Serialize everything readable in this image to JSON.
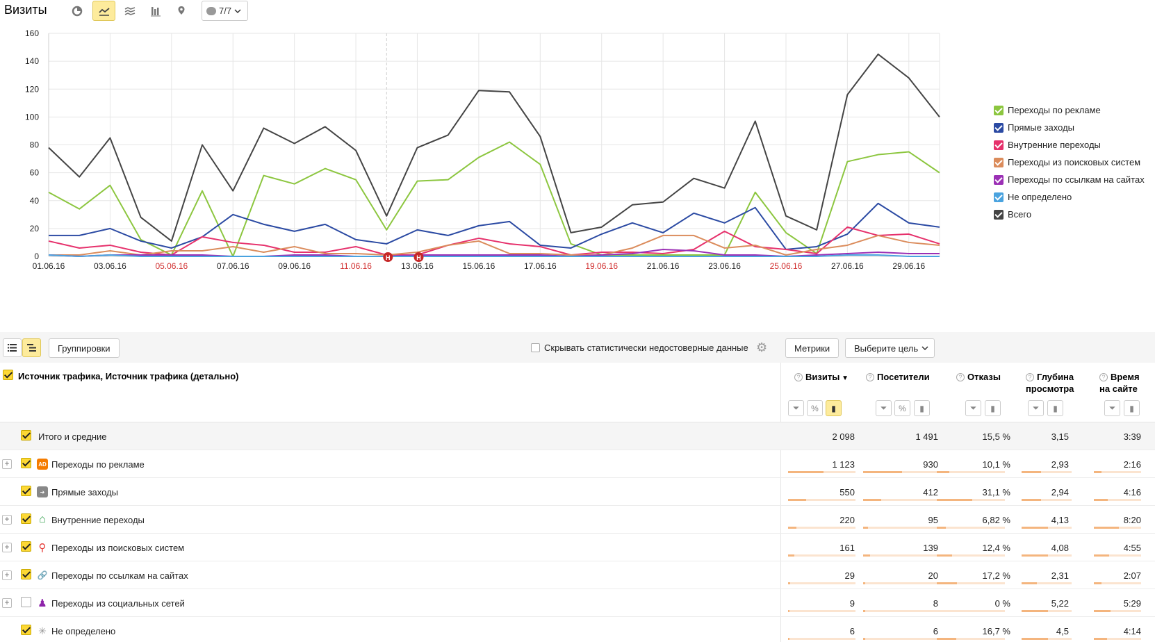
{
  "title": "Визиты",
  "toolbar": {
    "icons": [
      "pie-chart-icon",
      "line-chart-icon",
      "area-chart-icon",
      "bar-chart-icon",
      "map-pin-icon"
    ],
    "active": "line-chart-icon",
    "notes_label": "7/7"
  },
  "chart_data": {
    "type": "line",
    "ylim": [
      0,
      160
    ],
    "yticks": [
      "0",
      "20",
      "40",
      "60",
      "80",
      "100",
      "120",
      "140",
      "160"
    ],
    "x": [
      "01.06.16",
      "02.06.16",
      "03.06.16",
      "04.06.16",
      "05.06.16",
      "06.06.16",
      "07.06.16",
      "08.06.16",
      "09.06.16",
      "10.06.16",
      "11.06.16",
      "12.06.16",
      "13.06.16",
      "14.06.16",
      "15.06.16",
      "16.06.16",
      "17.06.16",
      "18.06.16",
      "19.06.16",
      "20.06.16",
      "21.06.16",
      "22.06.16",
      "23.06.16",
      "24.06.16",
      "25.06.16",
      "26.06.16",
      "27.06.16",
      "28.06.16",
      "29.06.16",
      "30.06.16"
    ],
    "xticks": [
      {
        "label": "01.06.16",
        "weekend": false
      },
      {
        "label": "03.06.16",
        "weekend": false
      },
      {
        "label": "05.06.16",
        "weekend": true
      },
      {
        "label": "07.06.16",
        "weekend": false
      },
      {
        "label": "09.06.16",
        "weekend": false
      },
      {
        "label": "11.06.16",
        "weekend": true
      },
      {
        "label": "13.06.16",
        "weekend": false
      },
      {
        "label": "15.06.16",
        "weekend": false
      },
      {
        "label": "17.06.16",
        "weekend": false
      },
      {
        "label": "19.06.16",
        "weekend": true
      },
      {
        "label": "21.06.16",
        "weekend": false
      },
      {
        "label": "23.06.16",
        "weekend": false
      },
      {
        "label": "25.06.16",
        "weekend": true
      },
      {
        "label": "27.06.16",
        "weekend": false
      },
      {
        "label": "29.06.16",
        "weekend": false
      }
    ],
    "note_markers": [
      {
        "x": "12.06.16",
        "label": "Н"
      },
      {
        "x": "13.06.16",
        "label": "Н"
      }
    ],
    "grid": true,
    "legend_position": "right",
    "series": [
      {
        "name": "Переходы по рекламе",
        "color": "#8cc63f",
        "values": [
          46,
          34,
          51,
          12,
          1,
          47,
          0,
          58,
          52,
          63,
          55,
          19,
          54,
          55,
          71,
          82,
          66,
          9,
          1,
          1,
          1,
          1,
          1,
          46,
          17,
          2,
          68,
          73,
          75,
          60
        ]
      },
      {
        "name": "Прямые заходы",
        "color": "#2b4aa3",
        "values": [
          15,
          15,
          20,
          11,
          6,
          14,
          30,
          23,
          18,
          23,
          12,
          9,
          19,
          15,
          22,
          25,
          8,
          6,
          16,
          24,
          17,
          31,
          24,
          35,
          5,
          7,
          16,
          38,
          24,
          21
        ]
      },
      {
        "name": "Внутренние переходы",
        "color": "#e6316c",
        "values": [
          11,
          6,
          8,
          3,
          1,
          14,
          10,
          8,
          3,
          3,
          7,
          1,
          1,
          8,
          13,
          9,
          7,
          1,
          3,
          3,
          2,
          5,
          18,
          7,
          5,
          2,
          21,
          15,
          16,
          9
        ]
      },
      {
        "name": "Переходы из поисковых систем",
        "color": "#db8c5c",
        "values": [
          1,
          1,
          4,
          1,
          4,
          4,
          7,
          3,
          7,
          2,
          2,
          1,
          3,
          8,
          11,
          2,
          2,
          1,
          1,
          6,
          15,
          15,
          6,
          8,
          1,
          5,
          8,
          15,
          10,
          8
        ]
      },
      {
        "name": "Переходы по ссылкам на сайтах",
        "color": "#9b30b5",
        "values": [
          1,
          0,
          1,
          1,
          1,
          1,
          0,
          0,
          1,
          1,
          0,
          0,
          1,
          1,
          1,
          1,
          1,
          0,
          1,
          2,
          5,
          4,
          1,
          1,
          0,
          1,
          2,
          3,
          2,
          2
        ]
      },
      {
        "name": "Не определено",
        "color": "#4aa3df",
        "values": [
          1,
          0,
          1,
          0,
          0,
          0,
          0,
          0,
          0,
          0,
          0,
          0,
          0,
          0,
          0,
          0,
          0,
          0,
          0,
          0,
          0,
          0,
          0,
          0,
          0,
          0,
          1,
          1,
          0,
          0
        ]
      },
      {
        "name": "Всего",
        "color": "#444444",
        "values": [
          78,
          57,
          85,
          28,
          11,
          80,
          47,
          92,
          81,
          93,
          76,
          29,
          78,
          87,
          119,
          118,
          86,
          17,
          21,
          37,
          39,
          56,
          49,
          97,
          29,
          19,
          116,
          145,
          128,
          100
        ]
      }
    ]
  },
  "table_toolbar": {
    "groupings_label": "Группировки",
    "hide_label": "Скрывать статистически недостоверные данные",
    "metrics_label": "Метрики",
    "goal_label": "Выберите цель"
  },
  "table": {
    "dimension_title": "Источник трафика, Источник трафика (детально)",
    "columns": [
      {
        "line1": "Визиты",
        "line2": "",
        "sorted": "▼"
      },
      {
        "line1": "Посетители",
        "line2": ""
      },
      {
        "line1": "Отказы",
        "line2": ""
      },
      {
        "line1": "Глубина",
        "line2": "просмотра"
      },
      {
        "line1": "Время",
        "line2": "на сайте"
      }
    ],
    "total": {
      "label": "Итого и средние",
      "values": [
        "2 098",
        "1 491",
        "15,5 %",
        "3,15",
        "3:39"
      ]
    },
    "rows": [
      {
        "label": "Переходы по рекламе",
        "icon": "ad-icon",
        "icon_text": "AD",
        "checked": true,
        "expandable": true,
        "values": [
          "1 123",
          "930",
          "10,1 %",
          "2,93",
          "2:16"
        ],
        "fill": [
          1.0,
          1.0,
          0.33,
          0.71,
          0.27
        ]
      },
      {
        "label": "Прямые заходы",
        "icon": "arrow-right-icon",
        "icon_text": "➔",
        "checked": true,
        "expandable": false,
        "values": [
          "550",
          "412",
          "31,1 %",
          "2,94",
          "4:16"
        ],
        "fill": [
          0.49,
          0.44,
          1.0,
          0.71,
          0.52
        ]
      },
      {
        "label": "Внутренние переходы",
        "icon": "home-icon",
        "icon_text": "⌂",
        "checked": true,
        "expandable": true,
        "values": [
          "220",
          "95",
          "6,82 %",
          "4,13",
          "8:20"
        ],
        "fill": [
          0.2,
          0.1,
          0.22,
          1.0,
          1.0
        ]
      },
      {
        "label": "Переходы из поисковых систем",
        "icon": "search-icon",
        "icon_text": "⚲",
        "checked": true,
        "expandable": true,
        "values": [
          "161",
          "139",
          "12,4 %",
          "4,08",
          "4:55"
        ],
        "fill": [
          0.14,
          0.15,
          0.4,
          0.99,
          0.59
        ]
      },
      {
        "label": "Переходы по ссылкам на сайтах",
        "icon": "link-icon",
        "icon_text": "🔗",
        "checked": true,
        "expandable": true,
        "values": [
          "29",
          "20",
          "17,2 %",
          "2,31",
          "2:07"
        ],
        "fill": [
          0.03,
          0.02,
          0.55,
          0.56,
          0.25
        ]
      },
      {
        "label": "Переходы из социальных сетей",
        "icon": "social-icon",
        "icon_text": "♟",
        "checked": false,
        "expandable": true,
        "values": [
          "9",
          "8",
          "0 %",
          "5,22",
          "5:29"
        ],
        "fill": [
          0.01,
          0.01,
          0.0,
          1.0,
          0.66
        ]
      },
      {
        "label": "Не определено",
        "icon": "undefined-icon",
        "icon_text": "✳",
        "checked": true,
        "expandable": false,
        "values": [
          "6",
          "6",
          "16,7 %",
          "4,5",
          "4:14"
        ],
        "fill": [
          0.01,
          0.01,
          0.54,
          1.0,
          0.51
        ]
      }
    ]
  },
  "colors": {
    "accent": "#fdeb9c",
    "bar": "#f4b57e",
    "weekend": "#d12f2f"
  }
}
